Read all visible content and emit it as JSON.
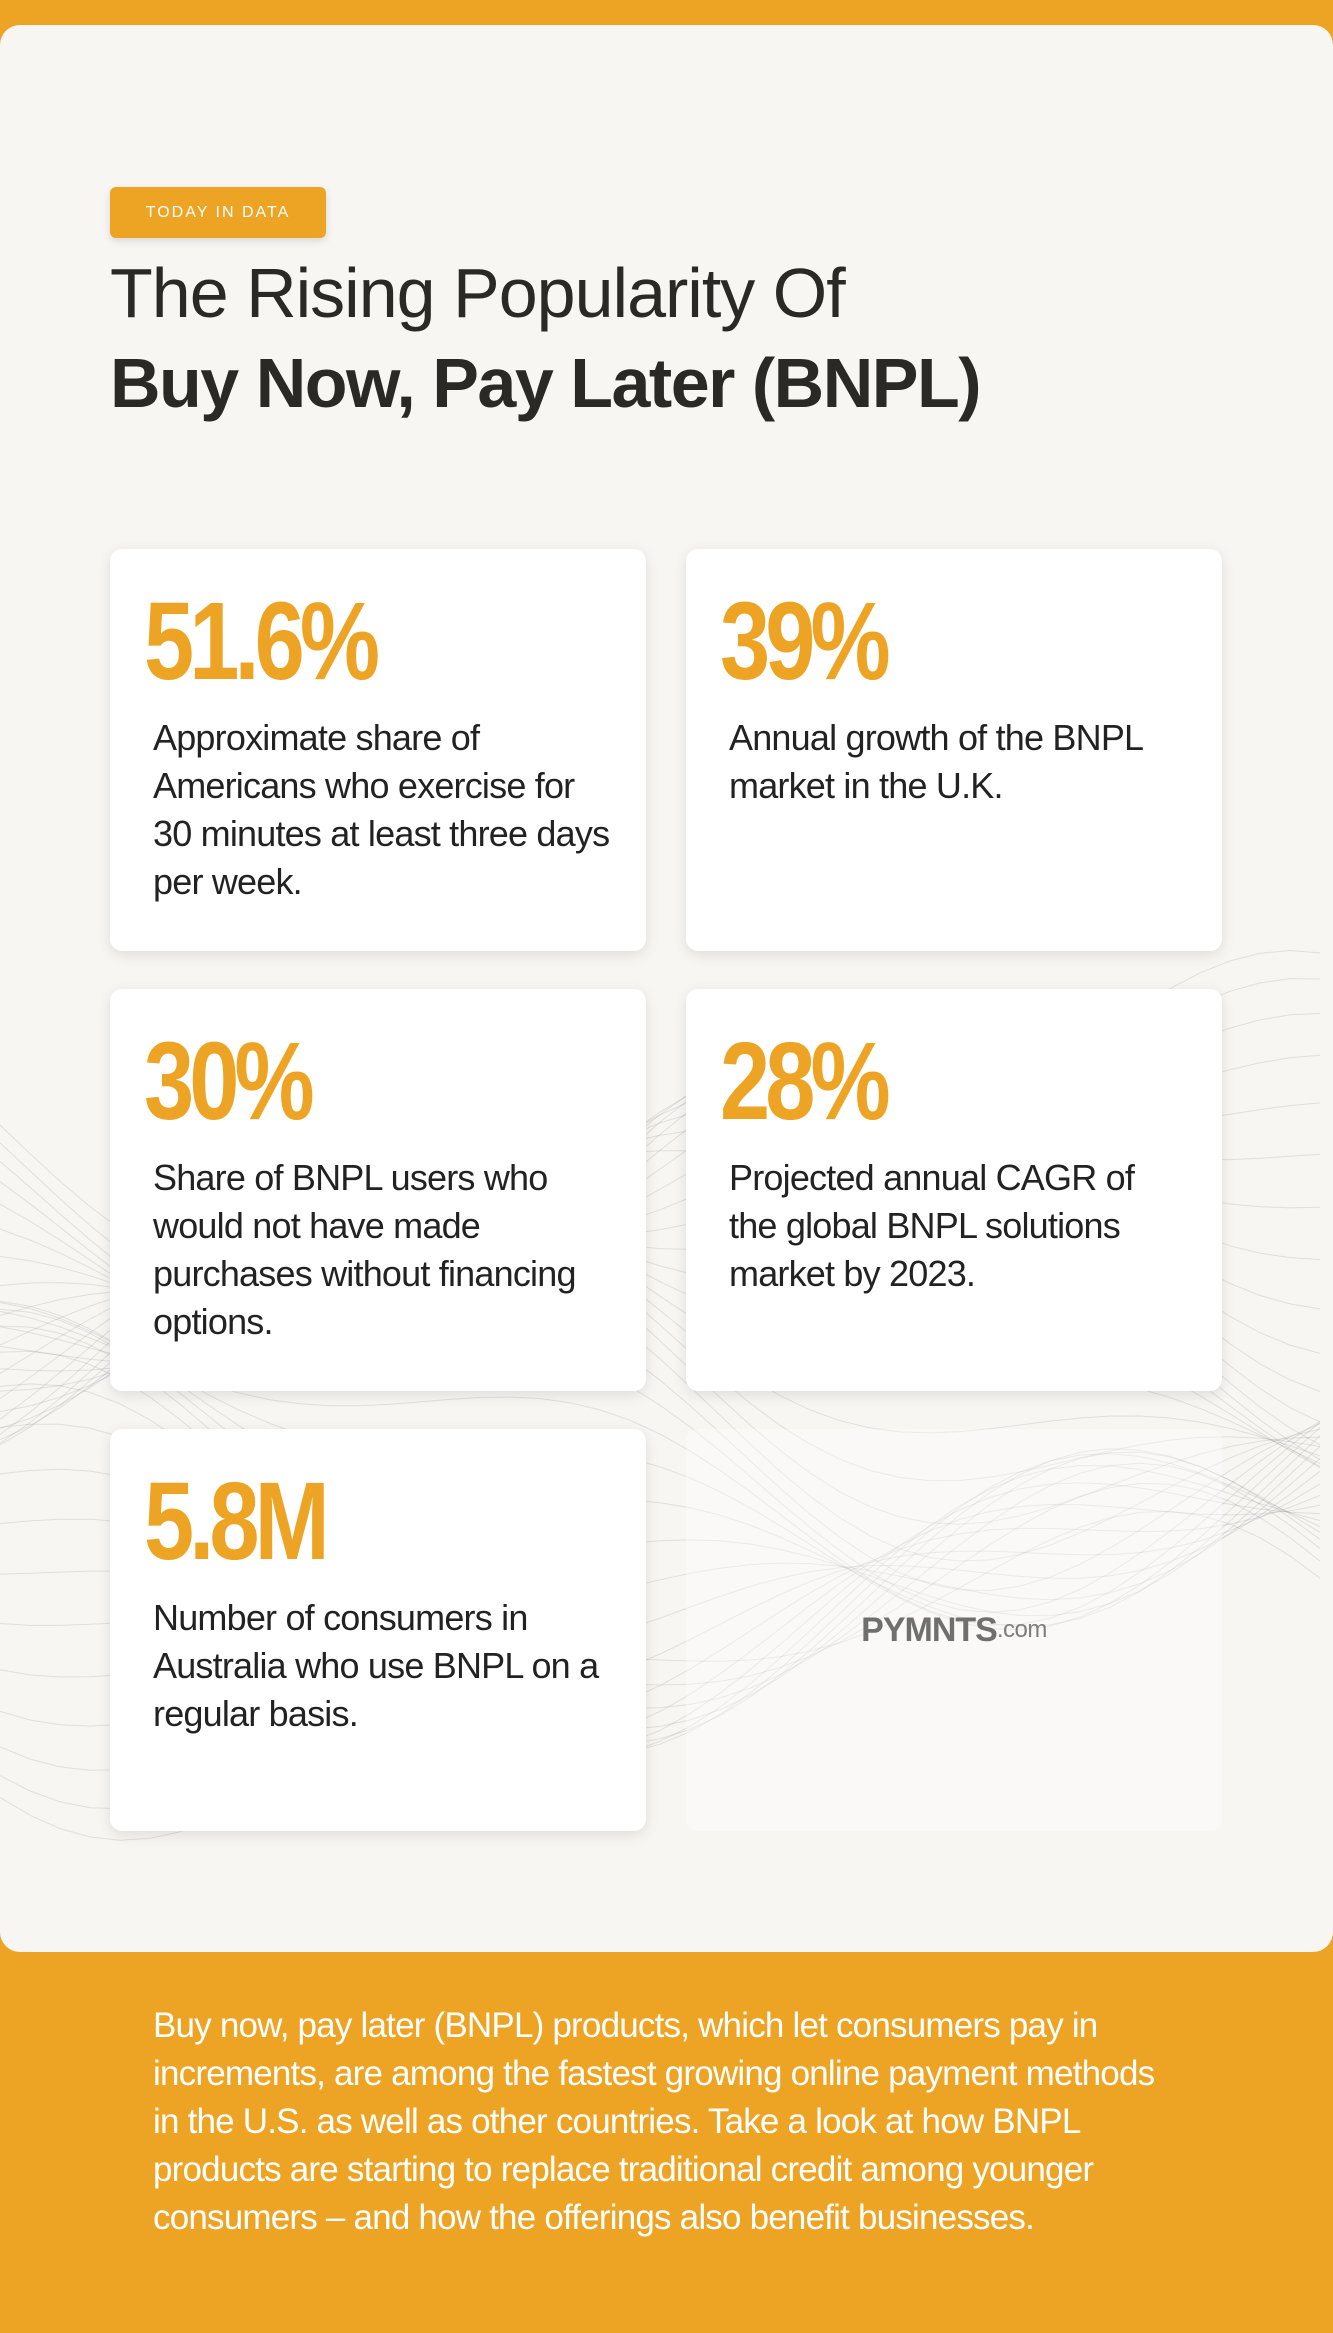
{
  "header": {
    "badge": "TODAY IN DATA",
    "title_line1": "The Rising Popularity Of",
    "title_line2": "Buy Now, Pay Later (BNPL)"
  },
  "stats": [
    {
      "value": "51.6%",
      "description": "Approximate share of Americans who exercise for 30 minutes at least three days per week."
    },
    {
      "value": "39%",
      "description": "Annual growth of the BNPL market in the U.K."
    },
    {
      "value": "30%",
      "description": "Share of BNPL users who would not have made purchases without financing options."
    },
    {
      "value": "28%",
      "description": "Projected annual CAGR of the global BNPL solutions market by 2023."
    },
    {
      "value": "5.8M",
      "description": "Number of consumers in Australia who use BNPL on a regular basis."
    }
  ],
  "logo": {
    "name": "PYMNTS",
    "suffix": ".com"
  },
  "footer": {
    "text": "Buy now, pay later (BNPL) products, which let consumers pay in increments, are among the fastest growing online payment methods in the U.S. as well as other countries. Take a look at how BNPL products are starting to replace traditional credit among younger consumers – and how the offerings also benefit businesses."
  }
}
